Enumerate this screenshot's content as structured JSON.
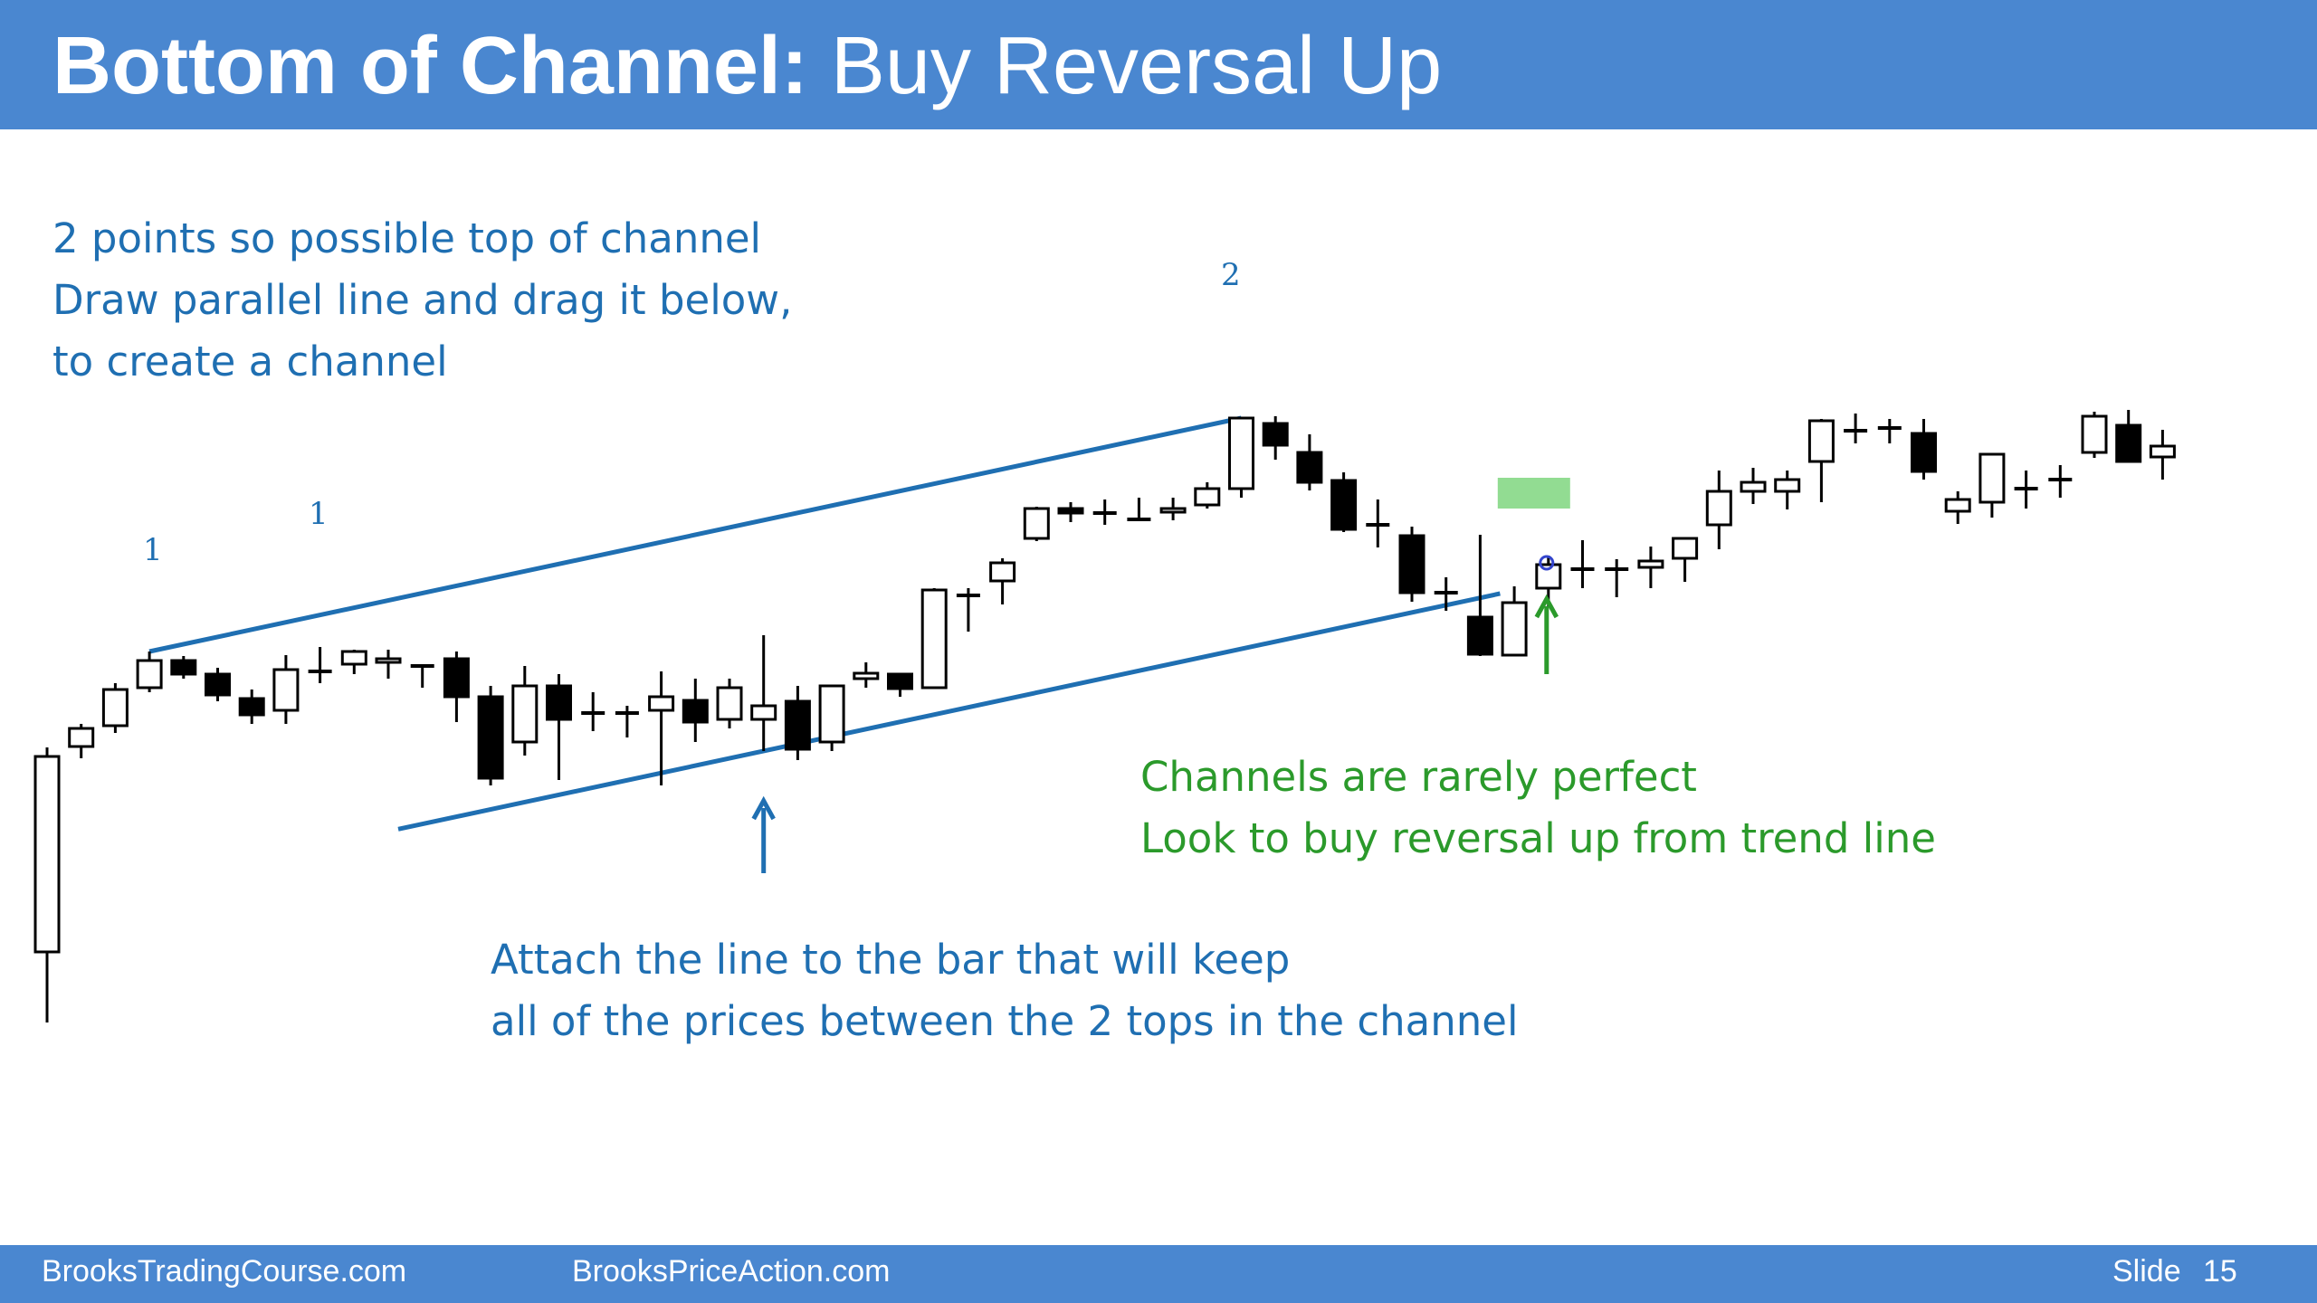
{
  "title": {
    "bold": "Bottom of Channel:",
    "normal": " Buy Reversal Up"
  },
  "notes": {
    "top_left": [
      "2 points so possible top of channel",
      "Draw parallel line and drag it below,",
      "to create a channel"
    ],
    "green": [
      "Channels are rarely perfect",
      "Look to buy reversal up from trend line"
    ],
    "bottom": [
      "Attach the line to the bar that will keep",
      "all of the prices between the 2 tops in the channel"
    ]
  },
  "labels": {
    "point1a": "1",
    "point1b": "1",
    "point2": "2"
  },
  "footer": {
    "site1": "BrooksTradingCourse.com",
    "site2": "BrooksPriceAction.com",
    "slide_word": "Slide",
    "slide_num": "15"
  },
  "colors": {
    "header": "#4a87d0",
    "annotation_blue": "#1f6fb2",
    "annotation_green": "#2b9a2b",
    "highlight": "#7fd67f"
  },
  "chart_data": {
    "type": "candlestick",
    "note": "Price bars; values in arbitrary price units read from the figure (higher = higher price).",
    "bars": [
      {
        "o": 78,
        "h": 304,
        "l": 0,
        "c": 294
      },
      {
        "o": 305,
        "h": 330,
        "l": 292,
        "c": 325
      },
      {
        "o": 328,
        "h": 375,
        "l": 320,
        "c": 368
      },
      {
        "o": 370,
        "h": 410,
        "l": 365,
        "c": 400
      },
      {
        "o": 400,
        "h": 405,
        "l": 380,
        "c": 385
      },
      {
        "o": 385,
        "h": 392,
        "l": 355,
        "c": 362
      },
      {
        "o": 358,
        "h": 368,
        "l": 330,
        "c": 340
      },
      {
        "o": 345,
        "h": 406,
        "l": 330,
        "c": 390
      },
      {
        "o": 388,
        "h": 415,
        "l": 375,
        "c": 388
      },
      {
        "o": 396,
        "h": 412,
        "l": 385,
        "c": 410
      },
      {
        "o": 398,
        "h": 412,
        "l": 380,
        "c": 402
      },
      {
        "o": 394,
        "h": 394,
        "l": 370,
        "c": 394
      },
      {
        "o": 402,
        "h": 410,
        "l": 332,
        "c": 360
      },
      {
        "o": 360,
        "h": 372,
        "l": 262,
        "c": 270
      },
      {
        "o": 310,
        "h": 394,
        "l": 295,
        "c": 372
      },
      {
        "o": 372,
        "h": 385,
        "l": 268,
        "c": 335
      },
      {
        "o": 342,
        "h": 365,
        "l": 322,
        "c": 342
      },
      {
        "o": 342,
        "h": 350,
        "l": 315,
        "c": 342
      },
      {
        "o": 345,
        "h": 388,
        "l": 262,
        "c": 360
      },
      {
        "o": 356,
        "h": 380,
        "l": 310,
        "c": 332
      },
      {
        "o": 335,
        "h": 380,
        "l": 325,
        "c": 370
      },
      {
        "o": 335,
        "h": 428,
        "l": 300,
        "c": 350
      },
      {
        "o": 355,
        "h": 372,
        "l": 290,
        "c": 302
      },
      {
        "o": 310,
        "h": 372,
        "l": 300,
        "c": 372
      },
      {
        "o": 380,
        "h": 398,
        "l": 370,
        "c": 386
      },
      {
        "o": 385,
        "h": 385,
        "l": 360,
        "c": 369
      },
      {
        "o": 370,
        "h": 480,
        "l": 370,
        "c": 478
      },
      {
        "o": 470,
        "h": 480,
        "l": 432,
        "c": 472
      },
      {
        "o": 488,
        "h": 513,
        "l": 462,
        "c": 508
      },
      {
        "o": 535,
        "h": 570,
        "l": 532,
        "c": 568
      },
      {
        "o": 568,
        "h": 575,
        "l": 553,
        "c": 563
      },
      {
        "o": 563,
        "h": 578,
        "l": 550,
        "c": 563
      },
      {
        "o": 556,
        "h": 580,
        "l": 556,
        "c": 556
      },
      {
        "o": 564,
        "h": 580,
        "l": 555,
        "c": 568
      },
      {
        "o": 572,
        "h": 597,
        "l": 568,
        "c": 590
      },
      {
        "o": 590,
        "h": 668,
        "l": 580,
        "c": 668
      },
      {
        "o": 662,
        "h": 670,
        "l": 622,
        "c": 638
      },
      {
        "o": 630,
        "h": 650,
        "l": 588,
        "c": 597
      },
      {
        "o": 599,
        "h": 608,
        "l": 542,
        "c": 545
      },
      {
        "o": 550,
        "h": 578,
        "l": 525,
        "c": 550
      },
      {
        "o": 538,
        "h": 548,
        "l": 465,
        "c": 475
      },
      {
        "o": 475,
        "h": 492,
        "l": 455,
        "c": 475
      },
      {
        "o": 448,
        "h": 539,
        "l": 405,
        "c": 407
      },
      {
        "o": 406,
        "h": 482,
        "l": 406,
        "c": 464
      },
      {
        "o": 480,
        "h": 516,
        "l": 460,
        "c": 506
      },
      {
        "o": 501,
        "h": 533,
        "l": 480,
        "c": 501
      },
      {
        "o": 501,
        "h": 512,
        "l": 470,
        "c": 501
      },
      {
        "o": 503,
        "h": 526,
        "l": 480,
        "c": 510
      },
      {
        "o": 513,
        "h": 533,
        "l": 487,
        "c": 535
      },
      {
        "o": 550,
        "h": 610,
        "l": 523,
        "c": 587
      },
      {
        "o": 587,
        "h": 613,
        "l": 573,
        "c": 597
      },
      {
        "o": 587,
        "h": 610,
        "l": 567,
        "c": 600
      },
      {
        "o": 620,
        "h": 667,
        "l": 575,
        "c": 665
      },
      {
        "o": 654,
        "h": 673,
        "l": 640,
        "c": 654
      },
      {
        "o": 657,
        "h": 667,
        "l": 640,
        "c": 657
      },
      {
        "o": 651,
        "h": 667,
        "l": 600,
        "c": 609
      },
      {
        "o": 565,
        "h": 587,
        "l": 551,
        "c": 578
      },
      {
        "o": 575,
        "h": 624,
        "l": 558,
        "c": 628
      },
      {
        "o": 590,
        "h": 610,
        "l": 568,
        "c": 590
      },
      {
        "o": 600,
        "h": 616,
        "l": 580,
        "c": 600
      },
      {
        "o": 630,
        "h": 675,
        "l": 624,
        "c": 670
      },
      {
        "o": 660,
        "h": 677,
        "l": 620,
        "c": 620
      },
      {
        "o": 625,
        "h": 655,
        "l": 600,
        "c": 637
      }
    ],
    "channel_top": {
      "from_bar": 3,
      "to_bar": 35
    },
    "channel_bottom": {
      "through_bar": 21
    }
  }
}
